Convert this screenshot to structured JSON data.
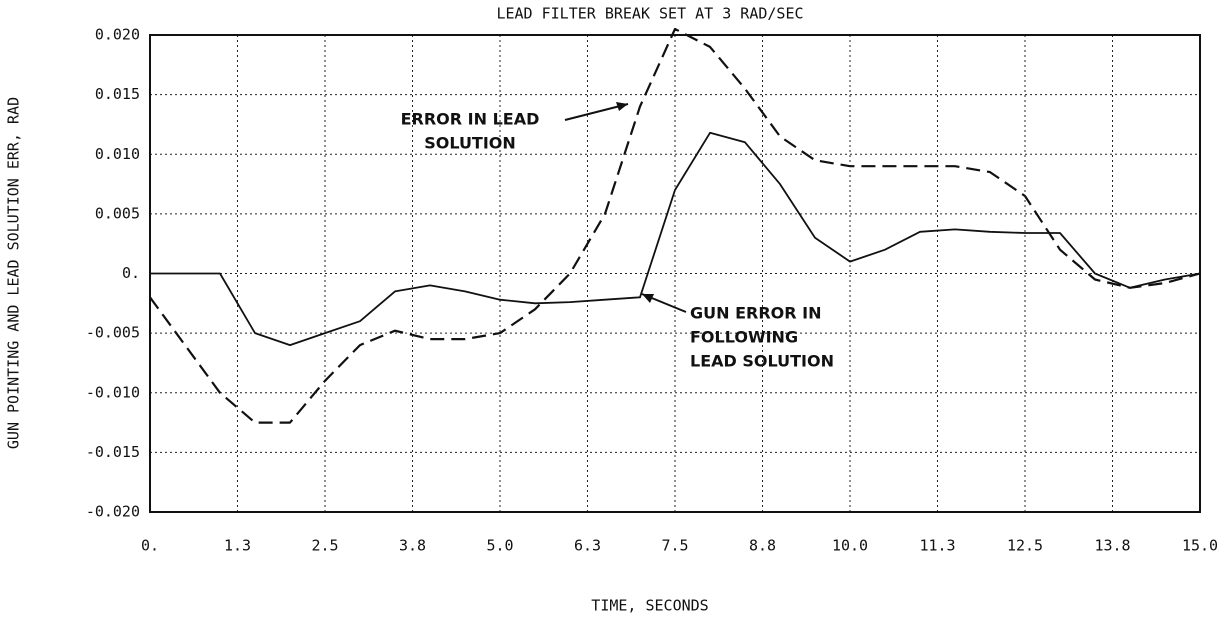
{
  "chart_data": {
    "type": "line",
    "title": "LEAD FILTER BREAK SET AT 3 RAD/SEC",
    "xlabel": "TIME, SECONDS",
    "ylabel": "GUN POINTING AND LEAD SOLUTION ERR, RAD",
    "annotations": [
      {
        "lines": [
          "ERROR IN LEAD",
          "SOLUTION"
        ]
      },
      {
        "lines": [
          "GUN ERROR IN",
          "FOLLOWING",
          "LEAD SOLUTION"
        ]
      }
    ],
    "x": [
      0,
      0.5,
      1,
      1.5,
      2,
      2.5,
      3,
      3.5,
      4,
      4.5,
      5,
      5.5,
      6,
      6.5,
      7,
      7.5,
      8,
      8.5,
      9,
      9.5,
      10,
      10.5,
      11,
      11.5,
      12,
      12.5,
      13,
      13.5,
      14,
      14.5,
      15
    ],
    "series": [
      {
        "color": "#111111",
        "dashed": true,
        "values": [
          -0.002,
          -0.006,
          -0.01,
          -0.0125,
          -0.0125,
          -0.009,
          -0.006,
          -0.0048,
          -0.0055,
          -0.0055,
          -0.005,
          -0.003,
          0,
          0.005,
          0.014,
          0.0205,
          0.019,
          0.0155,
          0.0115,
          0.0095,
          0.009,
          0.009,
          0.009,
          0.009,
          0.0085,
          0.0065,
          0.002,
          -0.0005,
          -0.0012,
          -0.0008,
          0
        ]
      },
      {
        "color": "#111111",
        "dashed": false,
        "values": [
          0,
          0,
          0,
          -0.005,
          -0.006,
          -0.005,
          -0.004,
          -0.0015,
          -0.001,
          -0.0015,
          -0.0022,
          -0.0025,
          -0.0024,
          -0.0022,
          -0.002,
          0.007,
          0.0118,
          0.011,
          0.0075,
          0.003,
          0.001,
          0.002,
          0.0035,
          0.0037,
          0.0035,
          0.0034,
          0.0034,
          0,
          -0.0012,
          -0.0005,
          0
        ]
      }
    ],
    "xlim": [
      0,
      15
    ],
    "xticks": [
      {
        "value": 0,
        "label": "0."
      },
      {
        "value": 1.25,
        "label": "1.3"
      },
      2.5,
      {
        "value": 3.75,
        "label": "3.8"
      },
      {
        "value": 5,
        "label": "5.0"
      },
      {
        "value": 6.25,
        "label": "6.3"
      },
      7.5,
      {
        "value": 8.75,
        "label": "8.8"
      },
      {
        "value": 10,
        "label": "10.0"
      },
      {
        "value": 11.25,
        "label": "11.3"
      },
      12.5,
      {
        "value": 13.75,
        "label": "13.8"
      },
      {
        "value": 15,
        "label": "15.0"
      }
    ],
    "ylim": [
      -0.02,
      0.02
    ],
    "yticks": [
      {
        "value": 0.02,
        "label": "0.020"
      },
      {
        "value": 0.015,
        "label": "0.015"
      },
      {
        "value": 0.01,
        "label": "0.010"
      },
      {
        "value": 0.005,
        "label": "0.005"
      },
      {
        "value": 0,
        "label": "0."
      },
      {
        "value": -0.005,
        "label": "-0.005"
      },
      {
        "value": -0.01,
        "label": "-0.010"
      },
      {
        "value": -0.015,
        "label": "-0.015"
      },
      {
        "value": -0.02,
        "label": "-0.020"
      }
    ],
    "grid": true
  }
}
